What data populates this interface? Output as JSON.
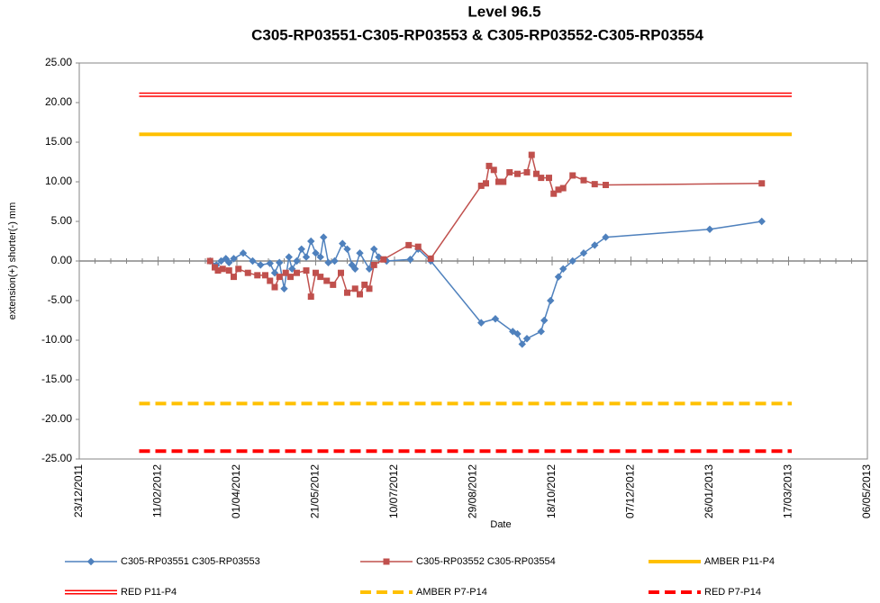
{
  "chart_data": {
    "type": "line",
    "title": "Level 96.5",
    "subtitle": "C305-RP03551-C305-RP03553 & C305-RP03552-C305-RP03554",
    "x_label": "Date",
    "y_label": "extension(+) shorter(-) mm",
    "xlim": [
      "2011-12-23",
      "2013-05-06"
    ],
    "xticks": [
      {
        "value": "2011-12-23",
        "label": "23/12/2011"
      },
      {
        "value": "2012-02-11",
        "label": "11/02/2012"
      },
      {
        "value": "2012-04-01",
        "label": "01/04/2012"
      },
      {
        "value": "2012-05-21",
        "label": "21/05/2012"
      },
      {
        "value": "2012-07-10",
        "label": "10/07/2012"
      },
      {
        "value": "2012-08-29",
        "label": "29/08/2012"
      },
      {
        "value": "2012-10-18",
        "label": "18/10/2012"
      },
      {
        "value": "2012-12-07",
        "label": "07/12/2012"
      },
      {
        "value": "2013-01-26",
        "label": "26/01/2013"
      },
      {
        "value": "2013-03-17",
        "label": "17/03/2013"
      },
      {
        "value": "2013-05-06",
        "label": "06/05/2013"
      }
    ],
    "ylim": [
      -25,
      25
    ],
    "yticks": [
      {
        "value": 25,
        "label": "25.00"
      },
      {
        "value": 20,
        "label": "20.00"
      },
      {
        "value": 15,
        "label": "15.00"
      },
      {
        "value": 10,
        "label": "10.00"
      },
      {
        "value": 5,
        "label": "5.00"
      },
      {
        "value": 0,
        "label": "0.00"
      },
      {
        "value": -5,
        "label": "-5.00"
      },
      {
        "value": -10,
        "label": "-10.00"
      },
      {
        "value": -15,
        "label": "-15.00"
      },
      {
        "value": -20,
        "label": "-20.00"
      },
      {
        "value": -25,
        "label": "-25.00"
      }
    ],
    "grid": false,
    "legend": "bottom",
    "series": [
      {
        "name": "C305-RP03551 C305-RP03553",
        "color": "#4f81bd",
        "style": "solid",
        "line_width": 1.5,
        "marker": "diamond",
        "x": [
          "2012-03-15",
          "2012-03-19",
          "2012-03-22",
          "2012-03-25",
          "2012-03-27",
          "2012-03-30",
          "2012-04-05",
          "2012-04-11",
          "2012-04-16",
          "2012-04-22",
          "2012-04-25",
          "2012-04-28",
          "2012-05-01",
          "2012-05-04",
          "2012-05-06",
          "2012-05-09",
          "2012-05-12",
          "2012-05-15",
          "2012-05-18",
          "2012-05-21",
          "2012-05-24",
          "2012-05-26",
          "2012-05-29",
          "2012-06-02",
          "2012-06-07",
          "2012-06-10",
          "2012-06-13",
          "2012-06-15",
          "2012-06-18",
          "2012-06-24",
          "2012-06-27",
          "2012-06-30",
          "2012-07-05",
          "2012-07-20",
          "2012-07-25",
          "2012-08-02",
          "2012-09-03",
          "2012-09-12",
          "2012-09-23",
          "2012-09-26",
          "2012-09-29",
          "2012-10-02",
          "2012-10-11",
          "2012-10-13",
          "2012-10-17",
          "2012-10-22",
          "2012-10-25",
          "2012-10-31",
          "2012-11-07",
          "2012-11-14",
          "2012-11-21",
          "2013-01-26",
          "2013-02-28"
        ],
        "values": [
          0,
          -0.5,
          0,
          0.3,
          -0.2,
          0.3,
          1.0,
          0,
          -0.5,
          -0.3,
          -1.5,
          -0.2,
          -3.5,
          0.5,
          -1,
          0,
          1.5,
          0.5,
          2.5,
          1.0,
          0.5,
          3.0,
          -0.2,
          0,
          2.2,
          1.5,
          -0.5,
          -1,
          1.0,
          -1,
          1.5,
          0.5,
          0,
          0.2,
          1.5,
          0,
          -7.8,
          -7.3,
          -8.9,
          -9.2,
          -10.5,
          -9.8,
          -8.9,
          -7.5,
          -5,
          -2,
          -1,
          0,
          1.0,
          2.0,
          3.0,
          4.0,
          5.0
        ]
      },
      {
        "name": "C305-RP03552 C305-RP03554",
        "color": "#c0504d",
        "style": "solid",
        "line_width": 1.5,
        "marker": "square",
        "x": [
          "2012-03-15",
          "2012-03-18",
          "2012-03-20",
          "2012-03-23",
          "2012-03-27",
          "2012-03-30",
          "2012-04-02",
          "2012-04-08",
          "2012-04-14",
          "2012-04-19",
          "2012-04-22",
          "2012-04-25",
          "2012-04-28",
          "2012-05-02",
          "2012-05-05",
          "2012-05-09",
          "2012-05-15",
          "2012-05-18",
          "2012-05-21",
          "2012-05-24",
          "2012-05-28",
          "2012-06-01",
          "2012-06-06",
          "2012-06-10",
          "2012-06-15",
          "2012-06-18",
          "2012-06-21",
          "2012-06-24",
          "2012-06-27",
          "2012-07-03",
          "2012-07-19",
          "2012-07-25",
          "2012-08-02",
          "2012-09-03",
          "2012-09-06",
          "2012-09-08",
          "2012-09-11",
          "2012-09-14",
          "2012-09-17",
          "2012-09-21",
          "2012-09-26",
          "2012-10-02",
          "2012-10-05",
          "2012-10-08",
          "2012-10-11",
          "2012-10-16",
          "2012-10-19",
          "2012-10-22",
          "2012-10-25",
          "2012-10-31",
          "2012-11-07",
          "2012-11-14",
          "2012-11-21",
          "2013-02-28"
        ],
        "values": [
          0,
          -0.8,
          -1.2,
          -1.0,
          -1.2,
          -2.0,
          -1.0,
          -1.5,
          -1.8,
          -1.8,
          -2.5,
          -3.3,
          -2.0,
          -1.5,
          -2.0,
          -1.5,
          -1.2,
          -4.5,
          -1.5,
          -2.0,
          -2.5,
          -3.0,
          -1.5,
          -4.0,
          -3.5,
          -4.2,
          -3.0,
          -3.5,
          -0.5,
          0.2,
          2.0,
          1.8,
          0.3,
          9.5,
          9.8,
          12.0,
          11.5,
          10.0,
          10.0,
          11.2,
          11.0,
          11.2,
          13.4,
          11.0,
          10.5,
          10.5,
          8.5,
          9.0,
          9.2,
          10.8,
          10.2,
          9.7,
          9.6,
          9.8
        ]
      },
      {
        "name": "AMBER P11-P4",
        "color": "#ffc000",
        "style": "solid",
        "line_width": 4,
        "x": [
          "2012-01-30",
          "2013-03-19"
        ],
        "values": [
          16,
          16
        ]
      },
      {
        "name": "RED P11-P4",
        "color": "#ff0000",
        "style": "double",
        "line_width": 5,
        "x": [
          "2012-01-30",
          "2013-03-19"
        ],
        "values": [
          21,
          21
        ]
      },
      {
        "name": "AMBER P7-P14",
        "color": "#ffc000",
        "style": "dashed",
        "line_width": 4,
        "x": [
          "2012-01-30",
          "2013-03-19"
        ],
        "values": [
          -18,
          -18
        ]
      },
      {
        "name": "RED P7-P14",
        "color": "#ff0000",
        "style": "dashed",
        "line_width": 4,
        "x": [
          "2012-01-30",
          "2013-03-19"
        ],
        "values": [
          -24,
          -24
        ]
      }
    ]
  }
}
